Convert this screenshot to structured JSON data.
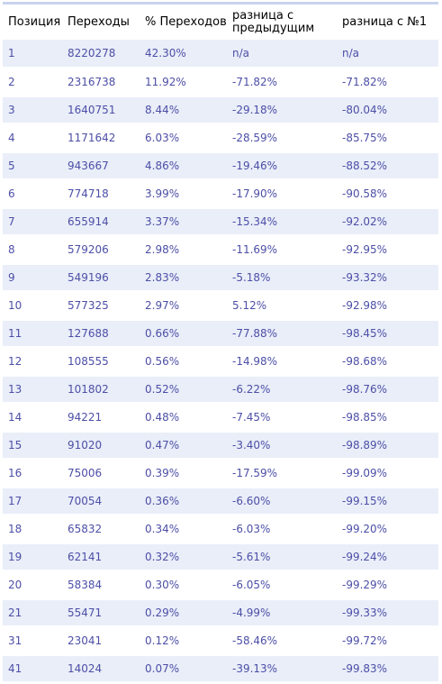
{
  "table": {
    "headers": [
      "Позиция",
      "Переходы",
      "% Переходов",
      "разница с предыдущим",
      "разница с №1"
    ],
    "rows": [
      [
        "1",
        "8220278",
        "42.30%",
        "n/a",
        "n/a"
      ],
      [
        "2",
        "2316738",
        "11.92%",
        "-71.82%",
        "-71.82%"
      ],
      [
        "3",
        "1640751",
        "8.44%",
        "-29.18%",
        "-80.04%"
      ],
      [
        "4",
        "1171642",
        "6.03%",
        "-28.59%",
        "-85.75%"
      ],
      [
        "5",
        "943667",
        "4.86%",
        "-19.46%",
        "-88.52%"
      ],
      [
        "6",
        "774718",
        "3.99%",
        "-17.90%",
        "-90.58%"
      ],
      [
        "7",
        "655914",
        "3.37%",
        "-15.34%",
        "-92.02%"
      ],
      [
        "8",
        "579206",
        "2.98%",
        "-11.69%",
        "-92.95%"
      ],
      [
        "9",
        "549196",
        "2.83%",
        "-5.18%",
        "-93.32%"
      ],
      [
        "10",
        "577325",
        "2.97%",
        "5.12%",
        "-92.98%"
      ],
      [
        "11",
        "127688",
        "0.66%",
        "-77.88%",
        "-98.45%"
      ],
      [
        "12",
        "108555",
        "0.56%",
        "-14.98%",
        "-98.68%"
      ],
      [
        "13",
        "101802",
        "0.52%",
        "-6.22%",
        "-98.76%"
      ],
      [
        "14",
        "94221",
        "0.48%",
        "-7.45%",
        "-98.85%"
      ],
      [
        "15",
        "91020",
        "0.47%",
        "-3.40%",
        "-98.89%"
      ],
      [
        "16",
        "75006",
        "0.39%",
        "-17.59%",
        "-99.09%"
      ],
      [
        "17",
        "70054",
        "0.36%",
        "-6.60%",
        "-99.15%"
      ],
      [
        "18",
        "65832",
        "0.34%",
        "-6.03%",
        "-99.20%"
      ],
      [
        "19",
        "62141",
        "0.32%",
        "-5.61%",
        "-99.24%"
      ],
      [
        "20",
        "58384",
        "0.30%",
        "-6.05%",
        "-99.29%"
      ],
      [
        "21",
        "55471",
        "0.29%",
        "-4.99%",
        "-99.33%"
      ],
      [
        "31",
        "23041",
        "0.12%",
        "-58.46%",
        "-99.72%"
      ],
      [
        "41",
        "14024",
        "0.07%",
        "-39.13%",
        "-99.83%"
      ]
    ]
  },
  "colors": {
    "header_rule": "#c8d3ee",
    "stripe": "#e9eef9",
    "cell_text": "#4d4fa6"
  }
}
